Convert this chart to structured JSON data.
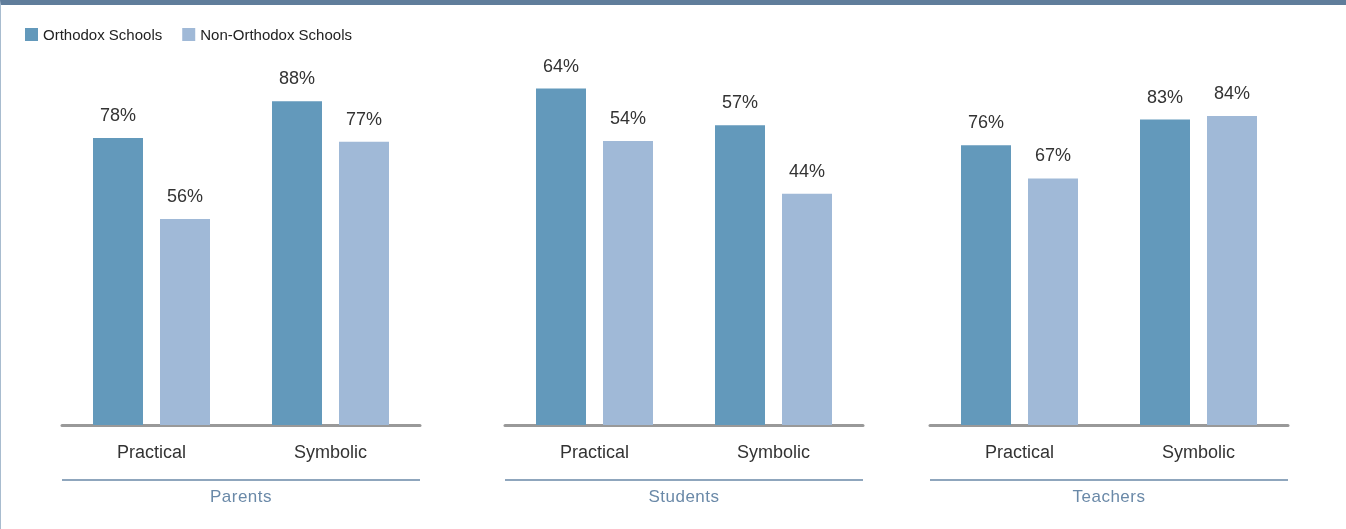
{
  "chart_data": [
    {
      "type": "bar",
      "xlabel": "Parents",
      "categories": [
        "Practical",
        "Symbolic"
      ],
      "series": [
        {
          "name": "Orthodox Schools",
          "color": "#6399bb",
          "values": [
            78,
            88
          ],
          "value_labels": [
            "78%",
            "88%"
          ]
        },
        {
          "name": "Non-Orthodox Schools",
          "color": "#a0b9d7",
          "values": [
            56,
            77
          ],
          "value_labels": [
            "56%",
            "77%"
          ]
        }
      ],
      "legend": "top left"
    },
    {
      "type": "bar",
      "xlabel": "Students",
      "categories": [
        "Practical",
        "Symbolic"
      ],
      "series": [
        {
          "color": "#6399bb",
          "values": [
            64,
            57
          ],
          "value_labels": [
            "64%",
            "57%"
          ]
        },
        {
          "color": "#a0b9d7",
          "values": [
            54,
            44
          ],
          "value_labels": [
            "54%",
            "44%"
          ]
        }
      ]
    },
    {
      "type": "bar",
      "xlabel": "Teachers",
      "categories": [
        "Practical",
        "Symbolic"
      ],
      "series": [
        {
          "color": "#6399bb",
          "values": [
            76,
            83
          ],
          "value_labels": [
            "76%",
            "83%"
          ]
        },
        {
          "color": "#a0b9d7",
          "values": [
            67,
            84
          ],
          "value_labels": [
            "67%",
            "84%"
          ]
        }
      ]
    }
  ]
}
